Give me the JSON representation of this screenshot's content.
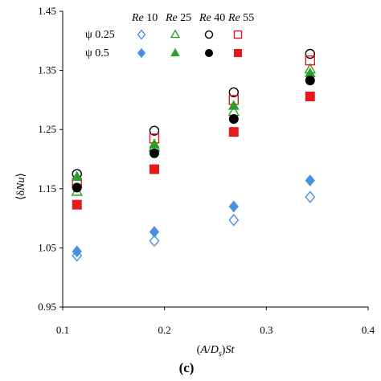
{
  "chart_data": {
    "type": "scatter",
    "x": [
      0.114,
      0.19,
      0.268,
      0.343
    ],
    "xlim": [
      0.1,
      0.4
    ],
    "ylim": [
      0.95,
      1.45
    ],
    "xticks": [
      "0.1",
      "0.2",
      "0.3",
      "0.4"
    ],
    "yticks": [
      "0.95",
      "1.05",
      "1.15",
      "1.25",
      "1.35",
      "1.45"
    ],
    "xlabel": "(A/Ds)St",
    "ylabel": "⟨δNu⟩",
    "panel_label": "(c)",
    "legend_rows": [
      "ψ  0.25",
      "ψ  0.5"
    ],
    "legend_re": [
      "Re 10",
      "Re 25",
      "Re 40",
      "Re 55"
    ],
    "series": [
      {
        "name": "ψ 0.25, Re 10",
        "marker": "diamond",
        "filled": false,
        "color": "#4a90e2",
        "values": [
          1.037,
          1.062,
          1.097,
          1.136
        ]
      },
      {
        "name": "ψ 0.25, Re 25",
        "marker": "triangle",
        "filled": false,
        "color": "#2ca02c",
        "values": [
          1.145,
          1.22,
          1.28,
          1.352
        ]
      },
      {
        "name": "ψ 0.25, Re 40",
        "marker": "circle",
        "filled": false,
        "color": "#000000",
        "values": [
          1.175,
          1.248,
          1.313,
          1.378
        ]
      },
      {
        "name": "ψ 0.25, Re 55",
        "marker": "square",
        "filled": false,
        "color": "#e41a1c",
        "values": [
          1.16,
          1.235,
          1.3,
          1.367
        ]
      },
      {
        "name": "ψ 0.5, Re 10",
        "marker": "diamond",
        "filled": true,
        "color": "#4a90e2",
        "values": [
          1.044,
          1.077,
          1.12,
          1.164
        ]
      },
      {
        "name": "ψ 0.5, Re 25",
        "marker": "triangle",
        "filled": true,
        "color": "#2ca02c",
        "values": [
          1.17,
          1.225,
          1.29,
          1.345
        ]
      },
      {
        "name": "ψ 0.5, Re 40",
        "marker": "circle",
        "filled": true,
        "color": "#000000",
        "values": [
          1.152,
          1.21,
          1.268,
          1.333
        ]
      },
      {
        "name": "ψ 0.5, Re 55",
        "marker": "square",
        "filled": true,
        "color": "#e41a1c",
        "values": [
          1.123,
          1.183,
          1.246,
          1.306
        ]
      }
    ]
  }
}
